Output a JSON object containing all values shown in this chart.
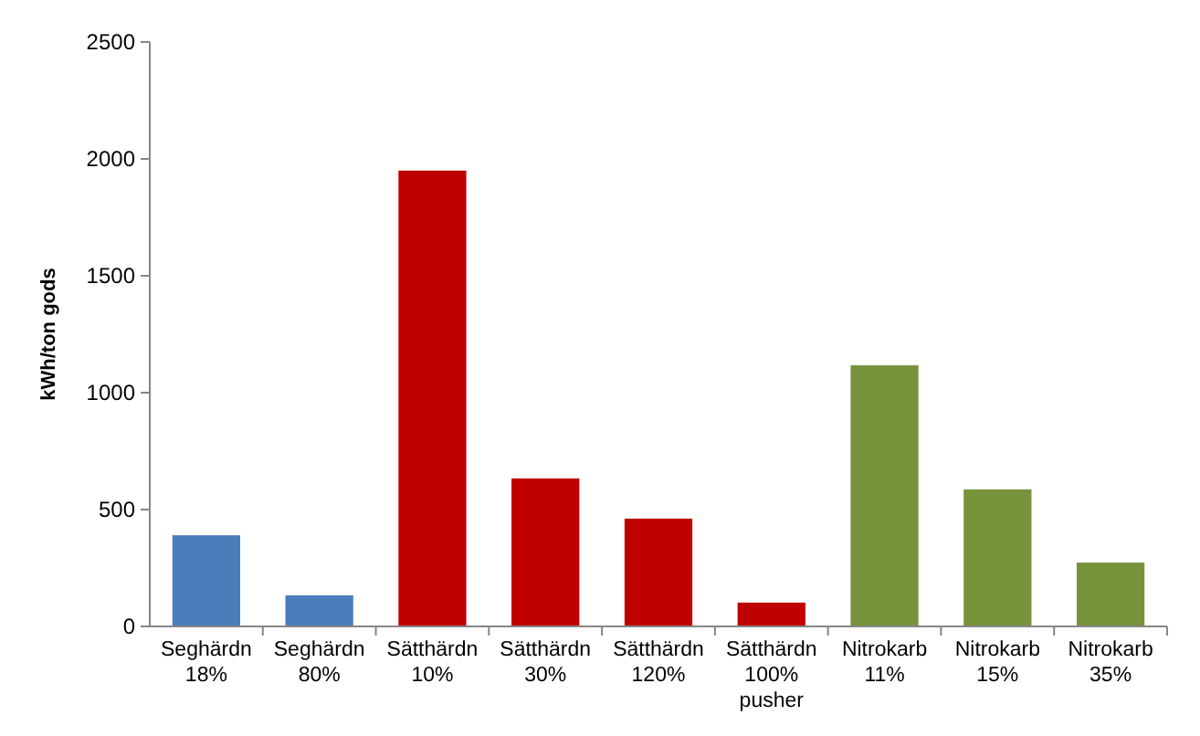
{
  "chart_data": {
    "type": "bar",
    "ylabel": "kWh/ton gods",
    "categories": [
      "Seghärdn\n18%",
      "Seghärdn\n80%",
      "Sätthärdn\n10%",
      "Sätthärdn\n30%",
      "Sätthärdn\n120%",
      "Sätthärdn\n100%\npusher",
      "Nitrokarb\n11%",
      "Nitrokarb\n15%",
      "Nitrokarb\n35%"
    ],
    "values": [
      390,
      133,
      1950,
      633,
      461,
      102,
      1117,
      586,
      273
    ],
    "colors": [
      "#4a7ebb",
      "#4a7ebb",
      "#c00000",
      "#c00000",
      "#c00000",
      "#c00000",
      "#77933c",
      "#77933c",
      "#77933c"
    ],
    "ylim": [
      0,
      2500
    ],
    "yticks": [
      0,
      500,
      1000,
      1500,
      2000,
      2500
    ],
    "grid": false
  }
}
